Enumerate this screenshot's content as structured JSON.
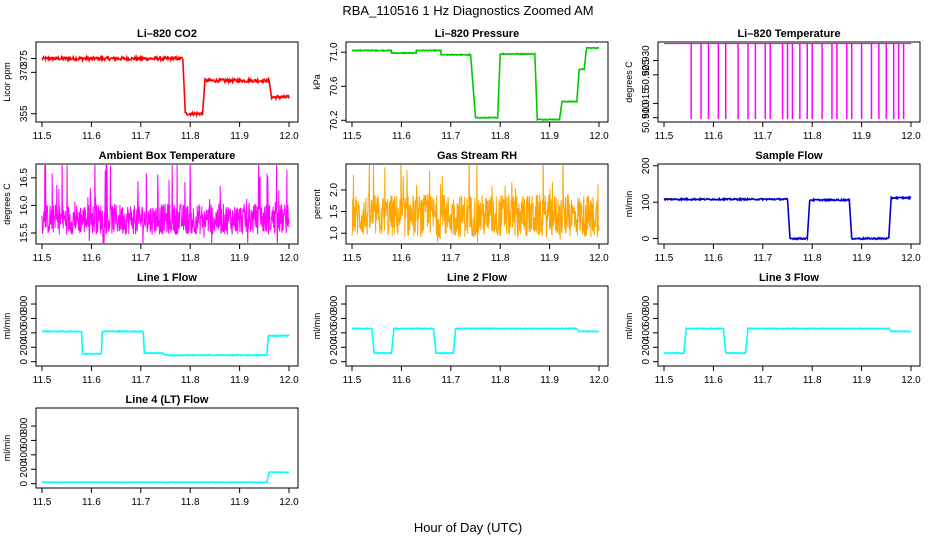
{
  "title": "RBA_110516  1 Hz Diagnostics Zoomed AM",
  "xlabel": "Hour of Day (UTC)",
  "chart_data": [
    {
      "type": "line",
      "title": "Li–820 CO2",
      "ylabel": "Licor ppm",
      "color": "#ff0000",
      "xlim": [
        11.5,
        12.0
      ],
      "ylim": [
        352,
        381
      ],
      "xticks": [
        "11.5",
        "11.6",
        "11.7",
        "11.8",
        "11.9",
        "12.0"
      ],
      "yticks": [
        {
          "v": 355,
          "label": "355"
        },
        {
          "v": 370,
          "label": "370"
        },
        {
          "v": 375,
          "label": "375"
        }
      ],
      "noise": 0.6,
      "segments": [
        [
          11.5,
          11.785,
          375
        ],
        [
          11.79,
          11.825,
          355
        ],
        [
          11.83,
          11.96,
          367
        ],
        [
          11.965,
          12.0,
          361
        ]
      ]
    },
    {
      "type": "line",
      "title": "Li–820 Pressure",
      "ylabel": "kPa",
      "color": "#00cc00",
      "xlim": [
        11.5,
        12.0
      ],
      "ylim": [
        70.18,
        71.12
      ],
      "xticks": [
        "11.5",
        "11.6",
        "11.7",
        "11.8",
        "11.9",
        "12.0"
      ],
      "yticks": [
        {
          "v": 70.2,
          "label": "70.2"
        },
        {
          "v": 70.6,
          "label": "70.6"
        },
        {
          "v": 71.0,
          "label": "71.0"
        }
      ],
      "noise": 0.005,
      "segments": [
        [
          11.5,
          11.58,
          71.02
        ],
        [
          11.58,
          11.63,
          70.99
        ],
        [
          11.63,
          11.68,
          71.02
        ],
        [
          11.68,
          11.74,
          70.97
        ],
        [
          11.75,
          11.795,
          70.23
        ],
        [
          11.8,
          11.87,
          70.98
        ],
        [
          11.875,
          11.92,
          70.21
        ],
        [
          11.925,
          11.955,
          70.42
        ],
        [
          11.96,
          11.97,
          70.8
        ],
        [
          11.975,
          12.0,
          71.05
        ]
      ]
    },
    {
      "type": "spikes",
      "title": "Li–820 Temperature",
      "ylabel": "degrees C",
      "color": "#ff00ff",
      "xlim": [
        11.5,
        12.0
      ],
      "ylim": [
        50.9085,
        50.9365
      ],
      "xticks": [
        "11.5",
        "11.6",
        "11.7",
        "11.8",
        "11.9",
        "12.0"
      ],
      "yticks": [
        {
          "v": 50.91,
          "label": "50.910"
        },
        {
          "v": 50.915,
          "label": "50.915"
        },
        {
          "v": 50.925,
          "label": "50.925"
        },
        {
          "v": 50.93,
          "label": "50.930"
        }
      ],
      "base": 50.936,
      "low": 50.9095,
      "spikes": [
        11.555,
        11.575,
        11.59,
        11.61,
        11.625,
        11.65,
        11.67,
        11.685,
        11.705,
        11.715,
        11.74,
        11.75,
        11.76,
        11.775,
        11.79,
        11.8,
        11.82,
        11.84,
        11.85,
        11.87,
        11.88,
        11.9,
        11.92,
        11.935,
        11.95,
        11.965,
        11.975,
        11.985
      ]
    },
    {
      "type": "noise",
      "title": "Ambient Box Temperature",
      "ylabel": "degrees C",
      "color": "#ff00ff",
      "xlim": [
        11.5,
        12.0
      ],
      "ylim": [
        15.3,
        16.75
      ],
      "xticks": [
        "11.5",
        "11.6",
        "11.7",
        "11.8",
        "11.9",
        "12.0"
      ],
      "yticks": [
        {
          "v": 15.5,
          "label": "15.5"
        },
        {
          "v": 16.0,
          "label": "16.0"
        },
        {
          "v": 16.5,
          "label": "16.5"
        }
      ],
      "center": 15.75,
      "amp": 0.28,
      "spike": 0.9
    },
    {
      "type": "noise",
      "title": "Gas Stream RH",
      "ylabel": "percent",
      "color": "#ffa500",
      "xlim": [
        11.5,
        12.0
      ],
      "ylim": [
        0.75,
        2.6
      ],
      "xticks": [
        "11.5",
        "11.6",
        "11.7",
        "11.8",
        "11.9",
        "12.0"
      ],
      "yticks": [
        {
          "v": 1.0,
          "label": "1.0"
        },
        {
          "v": 1.5,
          "label": "1.5"
        },
        {
          "v": 2.0,
          "label": "2.0"
        }
      ],
      "center": 1.4,
      "amp": 0.5,
      "spike": 1.1
    },
    {
      "type": "line",
      "title": "Sample Flow",
      "ylabel": "ml/min",
      "color": "#0000cc",
      "xlim": [
        11.5,
        12.0
      ],
      "ylim": [
        -15,
        205
      ],
      "xticks": [
        "11.5",
        "11.6",
        "11.7",
        "11.8",
        "11.9",
        "12.0"
      ],
      "yticks": [
        {
          "v": 0,
          "label": "0"
        },
        {
          "v": 100,
          "label": "100"
        },
        {
          "v": 200,
          "label": "200"
        }
      ],
      "noise": 2,
      "segments": [
        [
          11.5,
          11.75,
          108
        ],
        [
          11.755,
          11.79,
          0
        ],
        [
          11.795,
          11.875,
          106
        ],
        [
          11.88,
          11.955,
          0
        ],
        [
          11.96,
          12.0,
          112
        ]
      ]
    },
    {
      "type": "line",
      "title": "Line 1 Flow",
      "ylabel": "ml/min",
      "color": "#00ffff",
      "xlim": [
        11.5,
        12.0
      ],
      "ylim": [
        -60,
        1050
      ],
      "xticks": [
        "11.5",
        "11.6",
        "11.7",
        "11.8",
        "11.9",
        "12.0"
      ],
      "yticks": [
        {
          "v": 0,
          "label": "0"
        },
        {
          "v": 200,
          "label": "200"
        },
        {
          "v": 400,
          "label": "400"
        },
        {
          "v": 600,
          "label": "600"
        },
        {
          "v": 800,
          "label": "800"
        }
      ],
      "noise": 6,
      "segments": [
        [
          11.5,
          11.58,
          420
        ],
        [
          11.582,
          11.62,
          110
        ],
        [
          11.622,
          11.705,
          420
        ],
        [
          11.707,
          11.745,
          120
        ],
        [
          11.75,
          11.955,
          90
        ],
        [
          11.958,
          12.0,
          360
        ]
      ]
    },
    {
      "type": "line",
      "title": "Line 2 Flow",
      "ylabel": "ml/min",
      "color": "#00ffff",
      "xlim": [
        11.5,
        12.0
      ],
      "ylim": [
        -60,
        1050
      ],
      "xticks": [
        "11.5",
        "11.6",
        "11.7",
        "11.8",
        "11.9",
        "12.0"
      ],
      "yticks": [
        {
          "v": 0,
          "label": "0"
        },
        {
          "v": 200,
          "label": "200"
        },
        {
          "v": 400,
          "label": "400"
        },
        {
          "v": 600,
          "label": "600"
        },
        {
          "v": 800,
          "label": "800"
        }
      ],
      "noise": 5,
      "segments": [
        [
          11.5,
          11.54,
          460
        ],
        [
          11.545,
          11.58,
          120
        ],
        [
          11.585,
          11.665,
          460
        ],
        [
          11.67,
          11.705,
          120
        ],
        [
          11.71,
          11.955,
          460
        ],
        [
          11.96,
          12.0,
          420
        ]
      ]
    },
    {
      "type": "line",
      "title": "Line 3 Flow",
      "ylabel": "ml/min",
      "color": "#00ffff",
      "xlim": [
        11.5,
        12.0
      ],
      "ylim": [
        -60,
        1050
      ],
      "xticks": [
        "11.5",
        "11.6",
        "11.7",
        "11.8",
        "11.9",
        "12.0"
      ],
      "yticks": [
        {
          "v": 0,
          "label": "0"
        },
        {
          "v": 200,
          "label": "200"
        },
        {
          "v": 400,
          "label": "400"
        },
        {
          "v": 600,
          "label": "600"
        },
        {
          "v": 800,
          "label": "800"
        }
      ],
      "noise": 5,
      "segments": [
        [
          11.5,
          11.54,
          120
        ],
        [
          11.545,
          11.62,
          460
        ],
        [
          11.625,
          11.665,
          120
        ],
        [
          11.67,
          11.955,
          460
        ],
        [
          11.96,
          12.0,
          420
        ]
      ]
    },
    {
      "type": "line",
      "title": "Line 4 (LT) Flow",
      "ylabel": "ml/min",
      "color": "#00ffff",
      "xlim": [
        11.5,
        12.0
      ],
      "ylim": [
        -60,
        1050
      ],
      "xticks": [
        "11.5",
        "11.6",
        "11.7",
        "11.8",
        "11.9",
        "12.0"
      ],
      "yticks": [
        {
          "v": 0,
          "label": "0"
        },
        {
          "v": 200,
          "label": "200"
        },
        {
          "v": 400,
          "label": "400"
        },
        {
          "v": 600,
          "label": "600"
        },
        {
          "v": 800,
          "label": "800"
        }
      ],
      "noise": 3,
      "segments": [
        [
          11.5,
          11.955,
          20
        ],
        [
          11.96,
          12.0,
          160
        ]
      ]
    }
  ]
}
